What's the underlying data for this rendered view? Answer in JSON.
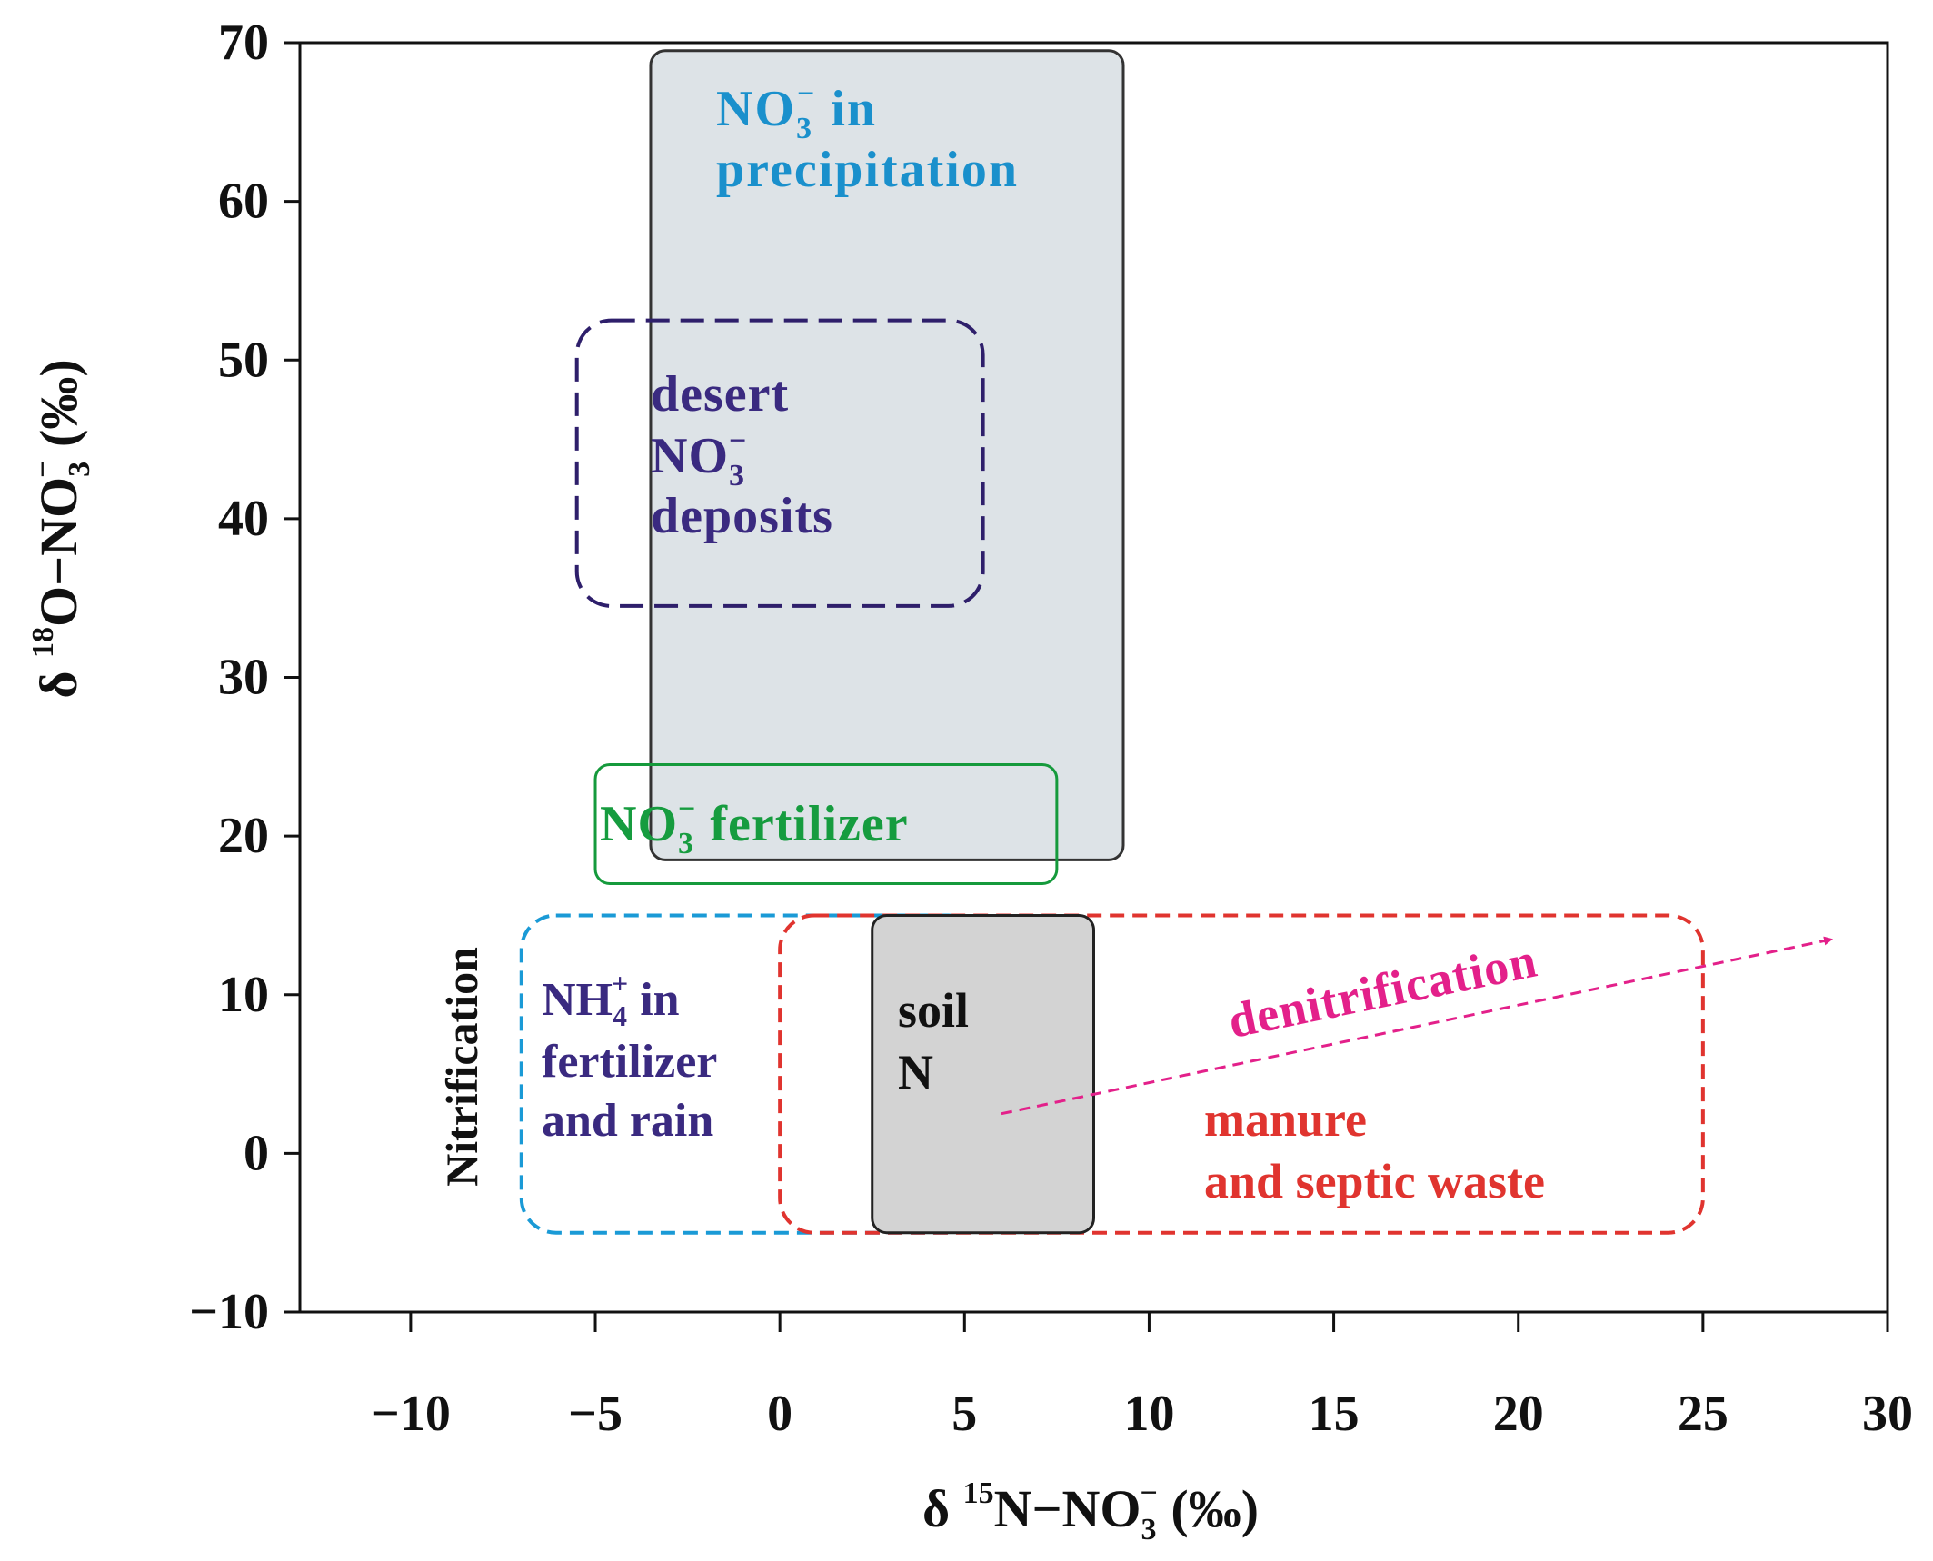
{
  "chart_data": {
    "type": "scatter",
    "title": "",
    "xlim": [
      -13,
      30
    ],
    "ylim": [
      -10,
      70
    ],
    "x_ticks": [
      {
        "value": -10,
        "label": "−10"
      },
      {
        "value": -5,
        "label": "−5"
      },
      {
        "value": 0,
        "label": "0"
      },
      {
        "value": 5,
        "label": "5"
      },
      {
        "value": 10,
        "label": "10"
      },
      {
        "value": 15,
        "label": "15"
      },
      {
        "value": 20,
        "label": "20"
      },
      {
        "value": 25,
        "label": "25"
      },
      {
        "value": 30,
        "label": "30"
      }
    ],
    "y_ticks": [
      {
        "value": -10,
        "label": "−10"
      },
      {
        "value": 0,
        "label": "0"
      },
      {
        "value": 10,
        "label": "10"
      },
      {
        "value": 20,
        "label": "20"
      },
      {
        "value": 30,
        "label": "30"
      },
      {
        "value": 40,
        "label": "40"
      },
      {
        "value": 50,
        "label": "50"
      },
      {
        "value": 60,
        "label": "60"
      },
      {
        "value": 70,
        "label": "70"
      }
    ],
    "xlabel": {
      "pre": "δ ",
      "sup1": "15",
      "mid": "N−NO",
      "sub": "3",
      "sup2": "−",
      "post": " (‰)"
    },
    "ylabel": {
      "pre": "δ ",
      "sup1": "18",
      "mid": "O−NO",
      "sub": "3",
      "sup2": "−",
      "post": " (‰)"
    },
    "grid": false,
    "regions": [
      {
        "name": "NO3- in precipitation",
        "x": [
          -3.5,
          9.3
        ],
        "y": [
          18.5,
          69.5
        ],
        "fill": "#dde3e7",
        "stroke": "#333333",
        "dash": false
      },
      {
        "name": "NO3- fertilizer",
        "x": [
          -5,
          7.5
        ],
        "y": [
          17,
          24.5
        ],
        "fill": "none",
        "stroke": "#159a3c",
        "dash": false
      },
      {
        "name": "desert NO3- deposits",
        "x": [
          -5.5,
          5.5
        ],
        "y": [
          34.5,
          52.5
        ],
        "fill": "none",
        "stroke": "#2e1f6b",
        "dash": true
      },
      {
        "name": "NH4+ in fertilizer and rain",
        "x": [
          -7,
          5.5
        ],
        "y": [
          -5,
          15
        ],
        "fill": "none",
        "stroke": "#1a9ad6",
        "dash": true
      },
      {
        "name": "manure and septic waste",
        "x": [
          0,
          25
        ],
        "y": [
          -5,
          15
        ],
        "fill": "none",
        "stroke": "#e0342f",
        "dash": true
      },
      {
        "name": "soil N",
        "x": [
          2.5,
          8.5
        ],
        "y": [
          -5,
          15
        ],
        "fill": "#d3d3d3",
        "stroke": "#222222",
        "dash": false
      }
    ],
    "arrow": {
      "x": [
        6,
        28.5
      ],
      "y": [
        2.5,
        13.5
      ],
      "color": "#e3208a",
      "label": "denitrification"
    },
    "labels": {
      "precipitation": {
        "line1": "NO",
        "sub": "3",
        "sup": "−",
        "line1_post": " in",
        "line2": "precipitation",
        "color": "#1a90cc"
      },
      "desert": {
        "line1": "desert",
        "line2": "NO",
        "sub": "3",
        "sup": "−",
        "line3": "deposits",
        "color": "#3a2a80"
      },
      "fertilizer": {
        "pre": "NO",
        "sub": "3",
        "sup": "−",
        "post": " fertilizer",
        "color": "#169c3f"
      },
      "ammonium": {
        "line1": "NH",
        "sub": "4",
        "sup": "+",
        "line1_post": " in",
        "line2": "fertilizer",
        "line3": "and rain",
        "color": "#3a2a80"
      },
      "soil": {
        "line1": "soil",
        "line2": "N",
        "color": "#111111"
      },
      "manure": {
        "line1": "manure",
        "line2": "and septic waste",
        "color": "#e0342f"
      },
      "nitrification": {
        "text": "Nitrification",
        "color": "#111111"
      },
      "denitrification": {
        "text": "denitrification",
        "color": "#e3208a"
      }
    }
  }
}
